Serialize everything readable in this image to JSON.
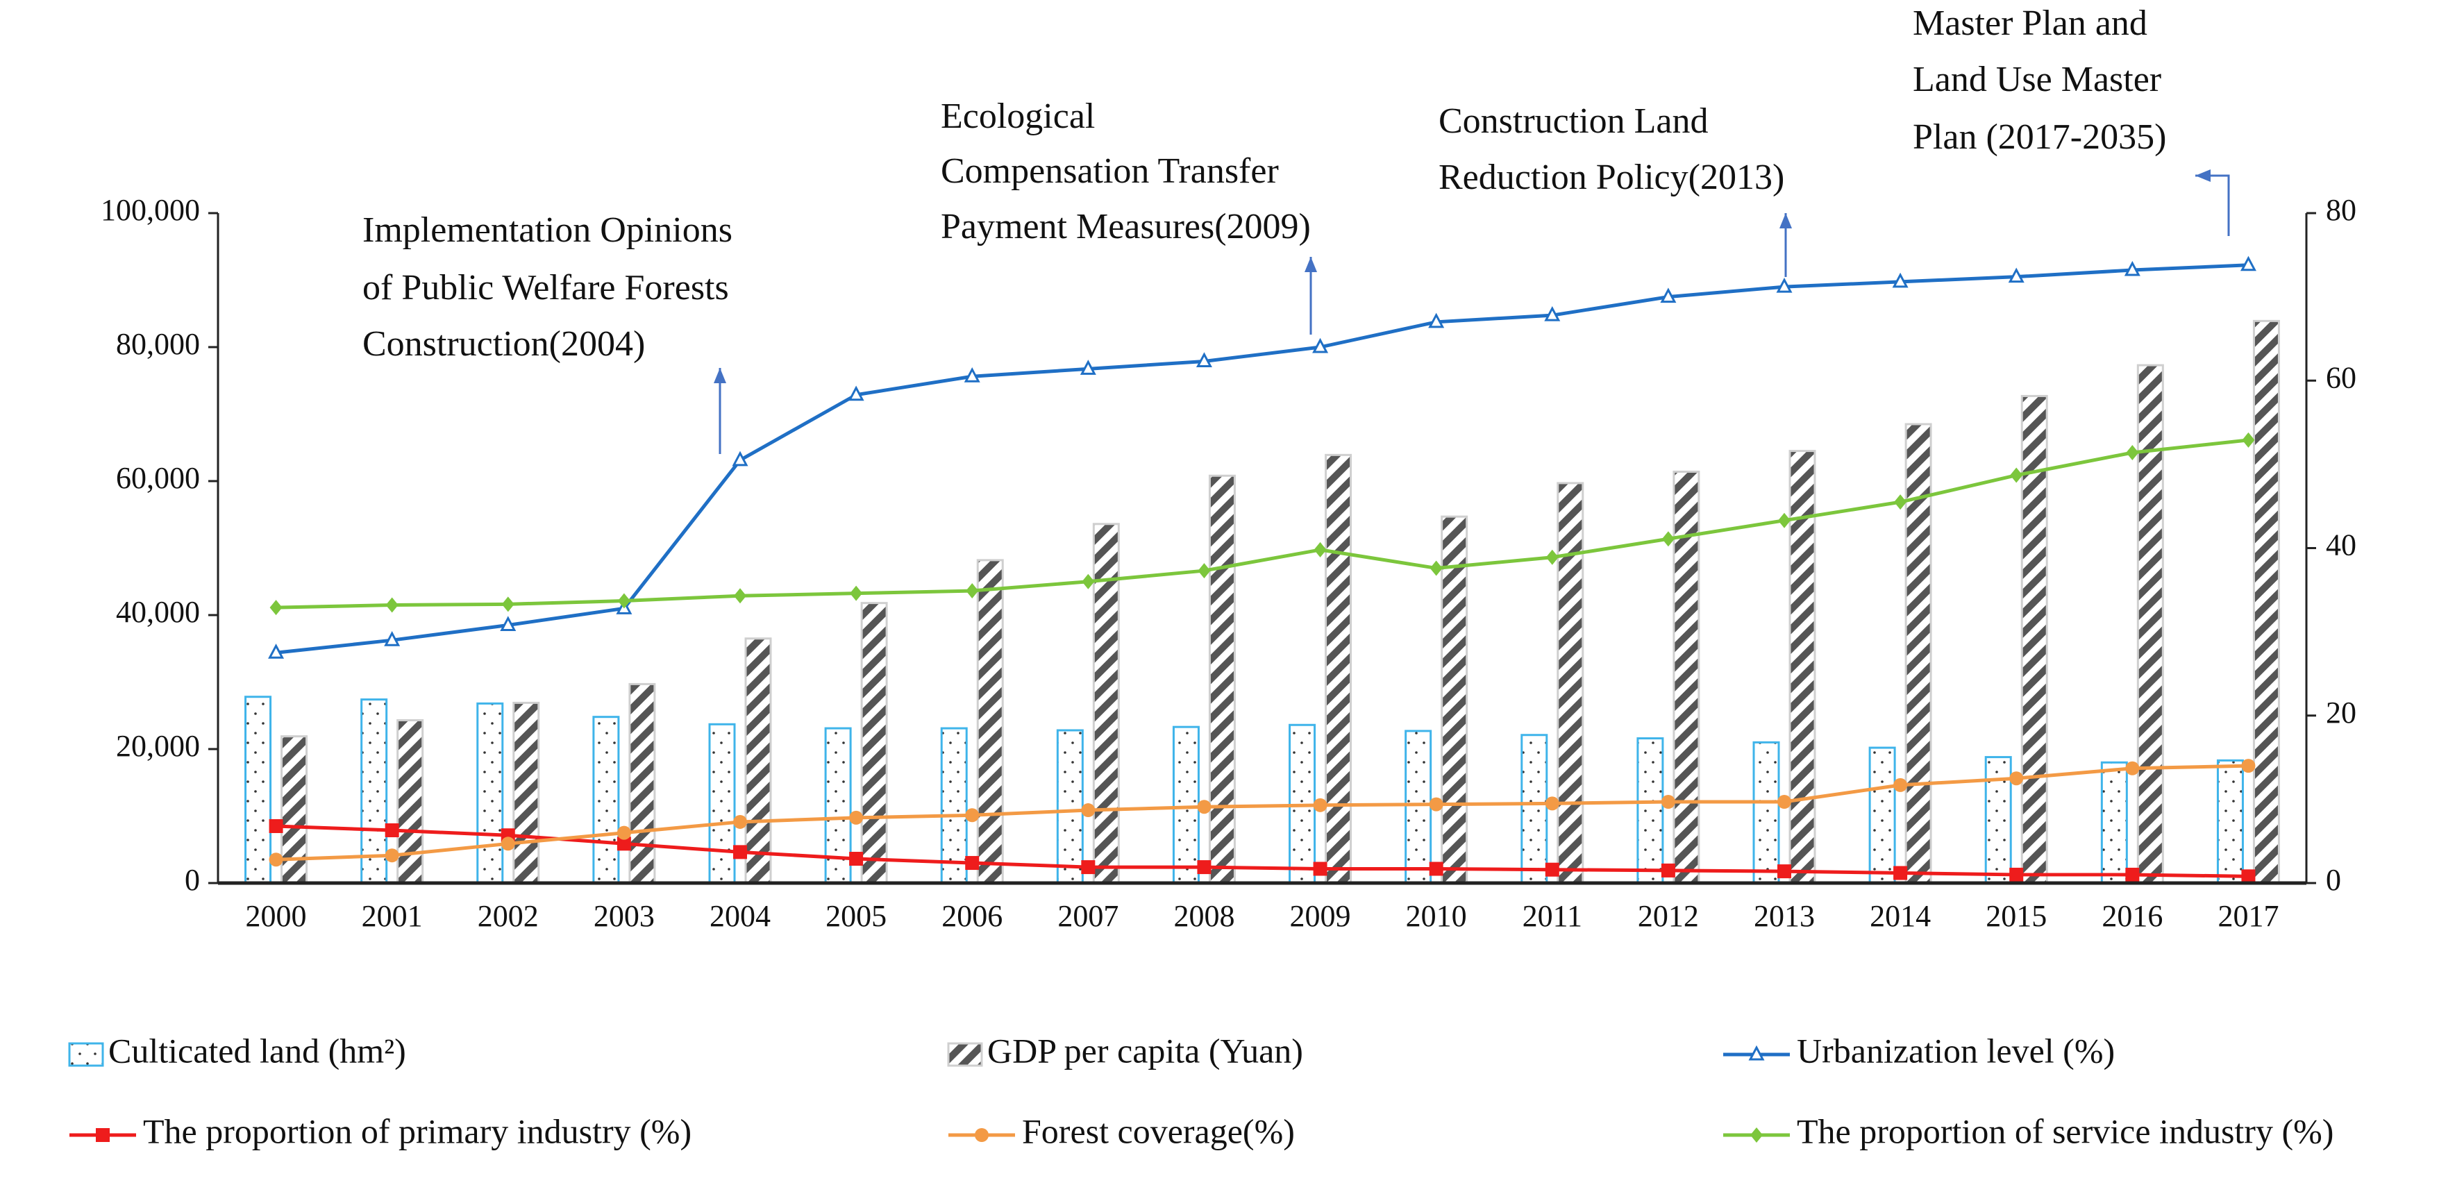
{
  "chart_data": {
    "type": "bar+line",
    "title": "",
    "categories": [
      "2000",
      "2001",
      "2002",
      "2003",
      "2004",
      "2005",
      "2006",
      "2007",
      "2008",
      "2009",
      "2010",
      "2011",
      "2012",
      "2013",
      "2014",
      "2015",
      "2016",
      "2017"
    ],
    "left_axis": {
      "range": [
        0,
        100000
      ],
      "ticks": [
        "0",
        "20,000",
        "40,000",
        "60,000",
        "80,000",
        "100,000"
      ],
      "tick_values": [
        0,
        20000,
        40000,
        60000,
        80000,
        100000
      ]
    },
    "right_axis": {
      "range": [
        0,
        80
      ],
      "ticks": [
        "0",
        "20",
        "40",
        "60",
        "80"
      ],
      "tick_values": [
        0,
        20,
        40,
        60,
        80
      ]
    },
    "series": [
      {
        "name": "Cultivated land (hm²)",
        "legend_label": "Culticated land (hm²)",
        "type": "bar",
        "axis": "left",
        "color": "#3fb4ea",
        "pattern": "dots",
        "values": [
          27800,
          27400,
          26800,
          24800,
          23700,
          23100,
          23100,
          22800,
          23300,
          23600,
          22700,
          22100,
          21600,
          21000,
          20200,
          18800,
          18000,
          18300
        ]
      },
      {
        "name": "GDP per capita (Yuan)",
        "legend_label": "GDP per capita (Yuan)",
        "type": "bar",
        "axis": "left",
        "color": "#555555",
        "pattern": "hatch",
        "values": [
          21900,
          24300,
          26900,
          29700,
          36500,
          41800,
          48200,
          53600,
          60800,
          63900,
          54700,
          59700,
          61400,
          64500,
          68500,
          72700,
          77300,
          83900
        ]
      },
      {
        "name": "Urbanization level (%)",
        "legend_label": "Urbanization level (%)",
        "type": "line",
        "axis": "right",
        "color": "#1f6fc5",
        "marker": "triangle",
        "values": [
          27.5,
          29.0,
          30.8,
          32.8,
          50.5,
          58.3,
          60.5,
          61.4,
          62.3,
          64.0,
          67.0,
          67.8,
          70.0,
          71.2,
          71.8,
          72.4,
          73.2,
          73.8
        ]
      },
      {
        "name": "The proportion of primary industry (%)",
        "legend_label": "The proportion of primary industry (%)",
        "type": "line",
        "axis": "right",
        "color": "#ee1c1c",
        "marker": "square",
        "values": [
          6.8,
          6.3,
          5.7,
          4.7,
          3.7,
          2.9,
          2.4,
          1.9,
          1.9,
          1.7,
          1.7,
          1.6,
          1.5,
          1.4,
          1.2,
          1.0,
          1.0,
          0.8
        ]
      },
      {
        "name": "Forest coverage(%)",
        "legend_label": "Forest coverage(%)",
        "type": "line",
        "axis": "right",
        "color": "#f39a45",
        "marker": "circle",
        "values": [
          2.8,
          3.3,
          4.7,
          6.0,
          7.3,
          7.8,
          8.1,
          8.7,
          9.1,
          9.3,
          9.4,
          9.5,
          9.7,
          9.7,
          11.7,
          12.5,
          13.7,
          14.0
        ]
      },
      {
        "name": "The proportion of service industry (%)",
        "legend_label": "The proportion of service industry (%)",
        "type": "line",
        "axis": "right",
        "color": "#7cc63c",
        "marker": "diamond",
        "values": [
          32.9,
          33.2,
          33.3,
          33.7,
          34.3,
          34.6,
          34.9,
          36.0,
          37.3,
          39.8,
          37.6,
          38.9,
          41.1,
          43.3,
          45.5,
          48.7,
          51.4,
          52.9
        ]
      }
    ],
    "annotations": [
      {
        "year": "2004",
        "lines": [
          "Implementation Opinions",
          "of Public Welfare Forests",
          "Construction(2004)"
        ]
      },
      {
        "year": "2009",
        "lines": [
          "Ecological",
          "Compensation Transfer",
          "Payment Measures(2009)"
        ]
      },
      {
        "year": "2013",
        "lines": [
          "Construction Land",
          "Reduction Policy(2013)"
        ]
      },
      {
        "year": "2017",
        "lines": [
          "Master Plan and",
          "Land Use Master",
          "Plan (2017-2035)"
        ]
      }
    ],
    "annotation_arrow_color": "#4472c4",
    "legend_placement": "bottom",
    "grid": false,
    "xlabel": "",
    "ylabel_left": "",
    "ylabel_right": ""
  }
}
